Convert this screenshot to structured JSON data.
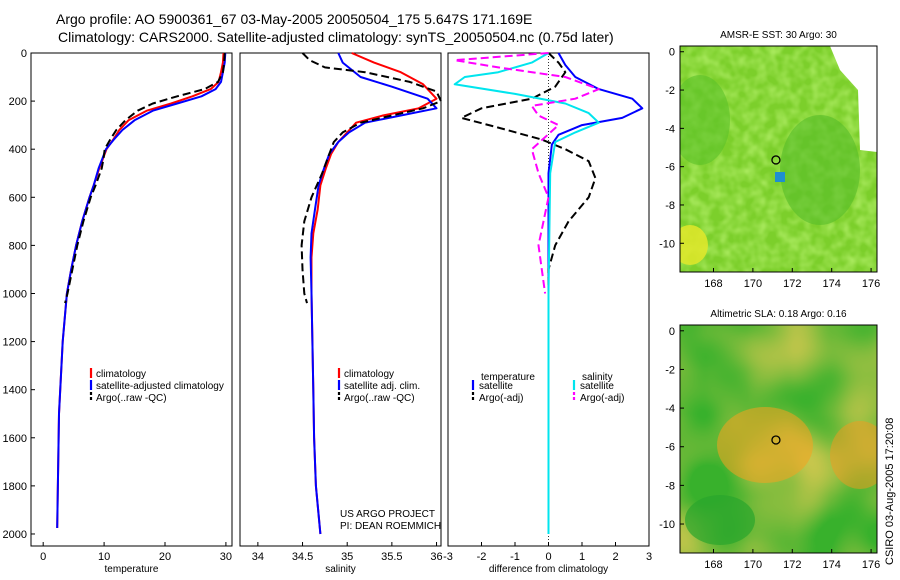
{
  "header": {
    "title_line1": "Argo profile: AO 5900361_67 03-May-2005 20050504_175 5.647S 171.169E",
    "title_line2": "Climatology: CARS2000. Satellite-adjusted climatology: synTS_20050504.nc (0.75d later)"
  },
  "side_label": "CSIRO 03-Aug-2005 17:20:08",
  "colors": {
    "red": "#ff0000",
    "blue": "#0000ff",
    "black": "#000000",
    "cyan": "#00e5ee",
    "magenta": "#ff00ff"
  },
  "chart_data": [
    {
      "type": "line",
      "xlabel": "temperature",
      "xlim": [
        -2,
        31
      ],
      "ylim": [
        0,
        2050
      ],
      "xticks": [
        0,
        10,
        20,
        30
      ],
      "yticks": [
        0,
        200,
        400,
        600,
        800,
        1000,
        1200,
        1400,
        1600,
        1800,
        2000
      ],
      "legend": [
        "climatology",
        "satellite-adjusted climatology",
        "Argo(..raw  -QC)"
      ],
      "series": [
        {
          "name": "climatology",
          "color": "#ff0000",
          "dash": "",
          "x": [
            29.6,
            29.5,
            29.2,
            28.8,
            27.5,
            24.5,
            21.0,
            17.0,
            14.0,
            12.5,
            11.5,
            10.4,
            9.8,
            9.2,
            8.3,
            7.6,
            6.4,
            5.4,
            4.6,
            3.9,
            3.2,
            2.6,
            2.3
          ],
          "y": [
            0,
            40,
            80,
            120,
            150,
            180,
            210,
            240,
            280,
            320,
            360,
            400,
            440,
            480,
            550,
            600,
            700,
            800,
            900,
            1000,
            1200,
            1500,
            1975
          ]
        },
        {
          "name": "satellite-adjusted climatology",
          "color": "#0000ff",
          "dash": "",
          "x": [
            29.9,
            29.8,
            29.5,
            29.2,
            28.3,
            26.0,
            22.0,
            18.0,
            15.0,
            13.0,
            11.6,
            10.3,
            9.7,
            9.1,
            8.3,
            7.6,
            6.4,
            5.4,
            4.6,
            3.9,
            3.2,
            2.6,
            2.3
          ],
          "y": [
            0,
            40,
            80,
            120,
            150,
            180,
            210,
            240,
            280,
            320,
            360,
            400,
            440,
            480,
            550,
            600,
            700,
            800,
            900,
            1000,
            1200,
            1500,
            1975
          ]
        },
        {
          "name": "Argo(..raw  -QC)",
          "color": "#000000",
          "dash": "8,4",
          "x": [
            29.8,
            29.7,
            29.5,
            28.7,
            26.5,
            22.0,
            18.0,
            15.5,
            13.5,
            12.0,
            11.0,
            10.1,
            9.9,
            9.6,
            8.6,
            7.8,
            6.6,
            5.6,
            4.8,
            4.0,
            3.6
          ],
          "y": [
            0,
            40,
            80,
            120,
            150,
            180,
            210,
            240,
            280,
            320,
            360,
            400,
            440,
            480,
            550,
            600,
            700,
            800,
            900,
            1000,
            1040
          ]
        }
      ]
    },
    {
      "type": "line",
      "xlabel": "salinity",
      "xlim": [
        33.8,
        36.05
      ],
      "ylim": [
        0,
        2050
      ],
      "xticks": [
        34,
        34.5,
        35,
        35.5,
        36
      ],
      "legend": [
        "climatology",
        "satellite adj. clim.",
        "Argo(..raw  -QC)"
      ],
      "annotation": [
        "US ARGO PROJECT",
        "PI: DEAN ROEMMICH"
      ],
      "series": [
        {
          "name": "climatology",
          "color": "#ff0000",
          "dash": "",
          "x": [
            35.05,
            35.3,
            35.6,
            35.85,
            36.0,
            35.8,
            35.4,
            35.1,
            35.0,
            34.9,
            34.82,
            34.76,
            34.7,
            34.67,
            34.62,
            34.6,
            34.6,
            34.61,
            34.62,
            34.63,
            34.65,
            34.7
          ],
          "y": [
            0,
            40,
            80,
            130,
            190,
            230,
            260,
            290,
            330,
            370,
            420,
            480,
            550,
            650,
            750,
            850,
            1000,
            1200,
            1400,
            1600,
            1800,
            2000
          ]
        },
        {
          "name": "satellite adj. clim.",
          "color": "#0000ff",
          "dash": "",
          "x": [
            34.9,
            34.95,
            35.15,
            35.5,
            35.9,
            36.0,
            35.6,
            35.2,
            35.02,
            34.9,
            34.8,
            34.74,
            34.68,
            34.64,
            34.6,
            34.59,
            34.6,
            34.61,
            34.62,
            34.63,
            34.65,
            34.7
          ],
          "y": [
            0,
            40,
            100,
            140,
            190,
            230,
            260,
            290,
            330,
            370,
            420,
            480,
            550,
            650,
            750,
            850,
            1000,
            1200,
            1400,
            1600,
            1800,
            2000
          ]
        },
        {
          "name": "Argo(..raw  -QC)",
          "color": "#000000",
          "dash": "8,4",
          "x": [
            34.5,
            34.58,
            34.75,
            35.2,
            35.7,
            36.0,
            36.05,
            35.85,
            35.5,
            35.15,
            34.95,
            34.85,
            34.8,
            34.72,
            34.6,
            34.52,
            34.49,
            34.5,
            34.52,
            34.55
          ],
          "y": [
            0,
            30,
            60,
            80,
            120,
            160,
            200,
            230,
            260,
            290,
            330,
            370,
            420,
            500,
            600,
            700,
            800,
            900,
            1000,
            1040
          ]
        }
      ]
    },
    {
      "type": "line",
      "xlabel": "difference from climatology",
      "xlim": [
        -3,
        3
      ],
      "ylim": [
        0,
        2050
      ],
      "xticks": [
        -3,
        -2,
        -1,
        0,
        1,
        2,
        3
      ],
      "legend_left_title": "temperature",
      "legend_right_title": "salinity",
      "legend": [
        "satellite",
        "Argo(-adj)",
        "satellite",
        "Argo(-adj)"
      ],
      "series": [
        {
          "name": "temperature satellite",
          "color": "#0000ff",
          "dash": "",
          "x": [
            0.3,
            0.5,
            0.8,
            1.5,
            2.5,
            2.8,
            2.2,
            1.0,
            0.3,
            0.1,
            0.0,
            0.0,
            0.0,
            0.0
          ],
          "y": [
            0,
            50,
            100,
            150,
            190,
            230,
            270,
            300,
            340,
            380,
            500,
            1000,
            1500,
            1975
          ]
        },
        {
          "name": "temperature Argo(-adj)",
          "color": "#000000",
          "dash": "8,4",
          "x": [
            0.0,
            0.3,
            0.5,
            0.2,
            -0.5,
            -2.0,
            -2.6,
            -1.5,
            -0.2,
            0.5,
            1.2,
            1.4,
            1.2,
            0.6,
            0.2,
            0.0,
            0.0
          ],
          "y": [
            0,
            40,
            80,
            140,
            190,
            230,
            270,
            310,
            360,
            400,
            450,
            520,
            600,
            700,
            800,
            900,
            1040
          ]
        },
        {
          "name": "salinity satellite",
          "color": "#00e5ee",
          "dash": "",
          "x": [
            0.0,
            -0.5,
            -1.5,
            -2.5,
            -2.8,
            -1.0,
            0.5,
            1.2,
            1.5,
            0.8,
            0.2,
            0.05,
            0.0,
            0.0
          ],
          "y": [
            0,
            40,
            80,
            100,
            130,
            170,
            210,
            250,
            290,
            330,
            370,
            500,
            1000,
            2000
          ]
        },
        {
          "name": "salinity Argo(-adj)",
          "color": "#ff00ff",
          "dash": "8,4",
          "x": [
            0.0,
            -2.8,
            -1.5,
            0.5,
            1.5,
            0.8,
            -0.5,
            -0.3,
            0.3,
            -0.5,
            -0.3,
            0.0,
            -0.3,
            -0.1
          ],
          "y": [
            0,
            30,
            60,
            100,
            150,
            190,
            220,
            260,
            300,
            400,
            500,
            600,
            800,
            1000
          ]
        }
      ]
    },
    {
      "type": "heatmap",
      "title": "AMSR-E SST: 30 Argo: 30",
      "xlim": [
        166.3,
        176.3
      ],
      "ylim": [
        -11.5,
        0.3
      ],
      "xticks": [
        168,
        170,
        172,
        174,
        176
      ],
      "yticks": [
        0,
        -2,
        -4,
        -6,
        -8,
        -10
      ],
      "marker": {
        "x": 171.17,
        "y": -5.65
      }
    },
    {
      "type": "heatmap",
      "title": "Altimetric SLA: 0.18 Argo: 0.16",
      "xlim": [
        166.3,
        176.3
      ],
      "ylim": [
        -11.5,
        0.3
      ],
      "xticks": [
        168,
        170,
        172,
        174,
        176
      ],
      "yticks": [
        0,
        -2,
        -4,
        -6,
        -8,
        -10
      ],
      "marker": {
        "x": 171.17,
        "y": -5.65
      }
    }
  ]
}
